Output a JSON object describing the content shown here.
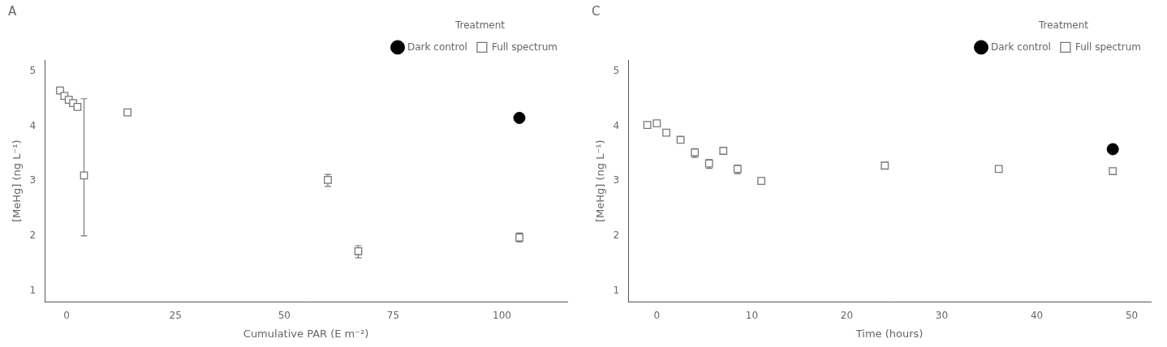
{
  "chart_data": [
    {
      "type": "scatter",
      "title": "A",
      "xlabel": "Cumulative PAR (E m⁻²)",
      "ylabel": "[MeHg] (ng L⁻¹)",
      "xlim": [
        -5,
        115
      ],
      "ylim": [
        0.8,
        5.2
      ],
      "xticks": [
        0,
        25,
        50,
        75,
        100
      ],
      "yticks": [
        1,
        2,
        3,
        4,
        5
      ],
      "grid": false,
      "legend": "upper right",
      "legend_title": "Treatment",
      "series": [
        {
          "name": "Dark control",
          "color": "black",
          "marker": "circle",
          "x": [
            104
          ],
          "values": [
            4.15
          ]
        },
        {
          "name": "Full spectrum",
          "color": "#777777",
          "marker": "square",
          "x": [
            -1.5,
            -0.5,
            0.5,
            1.5,
            2.5,
            4.0,
            14.0,
            60.0,
            67.0,
            104.0
          ],
          "values": [
            4.65,
            4.55,
            4.48,
            4.42,
            4.35,
            3.1,
            4.25,
            3.02,
            1.72,
            1.97
          ],
          "yerr_low": [
            0.05,
            0.05,
            0.05,
            0.05,
            0.05,
            1.1,
            0.05,
            0.12,
            0.12,
            0.08
          ],
          "yerr_high": [
            0.05,
            0.05,
            0.05,
            0.05,
            0.05,
            1.4,
            0.05,
            0.1,
            0.1,
            0.08
          ]
        }
      ]
    },
    {
      "type": "scatter",
      "title": "C",
      "xlabel": "Time (hours)",
      "ylabel": "[MeHg] (ng L⁻¹)",
      "xlim": [
        -3,
        52
      ],
      "ylim": [
        0.8,
        5.2
      ],
      "xticks": [
        0,
        10,
        20,
        30,
        40,
        50
      ],
      "yticks": [
        1,
        2,
        3,
        4,
        5
      ],
      "grid": false,
      "legend": "upper right",
      "legend_title": "Treatment",
      "series": [
        {
          "name": "Dark control",
          "color": "black",
          "marker": "circle",
          "x": [
            48
          ],
          "values": [
            3.58
          ]
        },
        {
          "name": "Full spectrum",
          "color": "#777777",
          "marker": "square",
          "x": [
            -1.0,
            0.0,
            1.0,
            2.5,
            4.0,
            5.5,
            7.0,
            8.5,
            11.0,
            24.0,
            36.0,
            48.0
          ],
          "values": [
            4.02,
            4.05,
            3.88,
            3.75,
            3.52,
            3.32,
            3.55,
            3.22,
            3.0,
            3.28,
            3.22,
            3.18
          ],
          "yerr_low": [
            0.04,
            0.04,
            0.04,
            0.04,
            0.09,
            0.09,
            0.05,
            0.09,
            0.05,
            0.0,
            0.0,
            0.05
          ],
          "yerr_high": [
            0.04,
            0.04,
            0.04,
            0.04,
            0.07,
            0.07,
            0.05,
            0.07,
            0.05,
            0.0,
            0.0,
            0.05
          ]
        }
      ]
    }
  ]
}
